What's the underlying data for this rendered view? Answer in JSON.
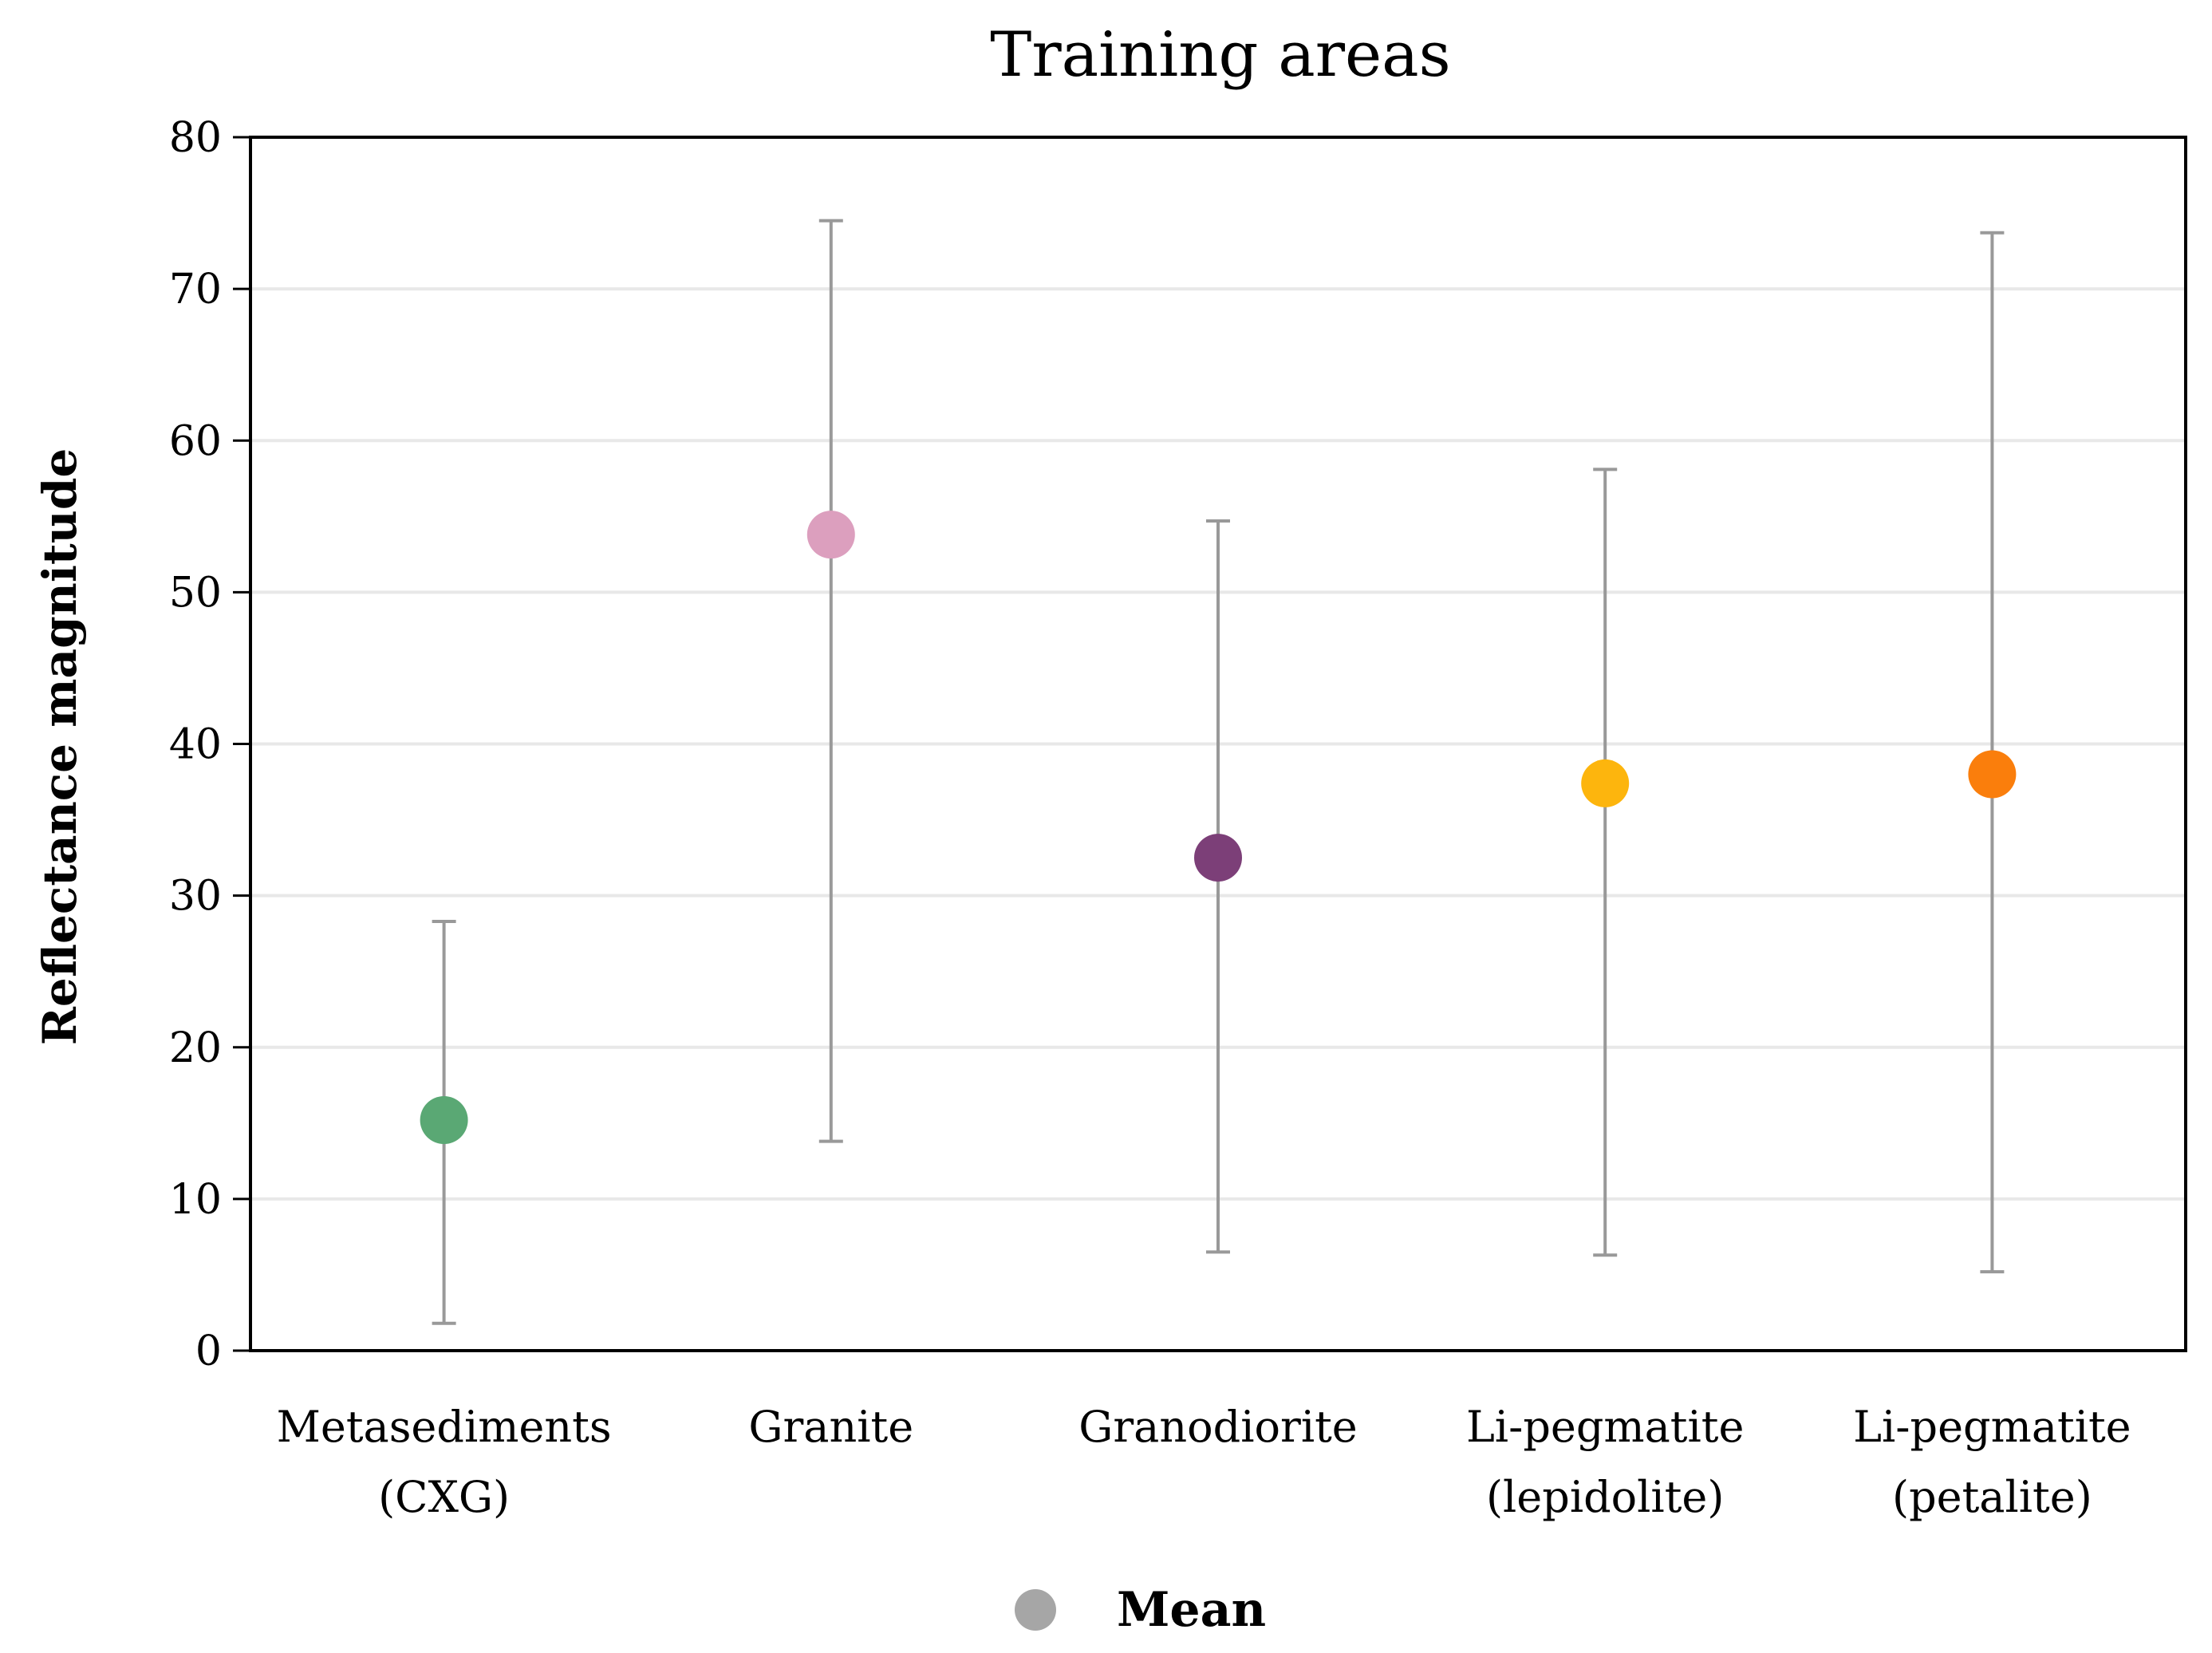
{
  "chart_data": {
    "type": "scatter",
    "title": "Training areas",
    "xlabel": "",
    "ylabel": "Reflectance magnitude",
    "ylim": [
      0,
      80
    ],
    "yticks": [
      0,
      10,
      20,
      30,
      40,
      50,
      60,
      70,
      80
    ],
    "grid": true,
    "legend_position": "bottom-center",
    "categories": [
      {
        "lines": [
          "Metasediments",
          "(CXG)"
        ]
      },
      {
        "lines": [
          "Granite"
        ]
      },
      {
        "lines": [
          "Granodiorite"
        ]
      },
      {
        "lines": [
          "Li-pegmatite",
          "(lepidolite)"
        ]
      },
      {
        "lines": [
          "Li-pegmatite",
          "(petalite)"
        ]
      }
    ],
    "series": [
      {
        "name": "Mean",
        "values": [
          15.2,
          53.8,
          32.5,
          37.4,
          38.0
        ],
        "error_low": [
          1.8,
          13.8,
          6.5,
          6.3,
          5.2
        ],
        "error_high": [
          28.3,
          74.5,
          54.7,
          58.1,
          73.7
        ],
        "colors": [
          "#5aa874",
          "#dc9fbe",
          "#7c3f78",
          "#fdb50d",
          "#fa7e0c"
        ]
      }
    ],
    "legend": [
      {
        "label": "Mean",
        "color": "#a6a6a6"
      }
    ],
    "colors": {
      "errorbar": "#999999",
      "grid": "#e8e8e8",
      "axis": "#000000"
    }
  }
}
